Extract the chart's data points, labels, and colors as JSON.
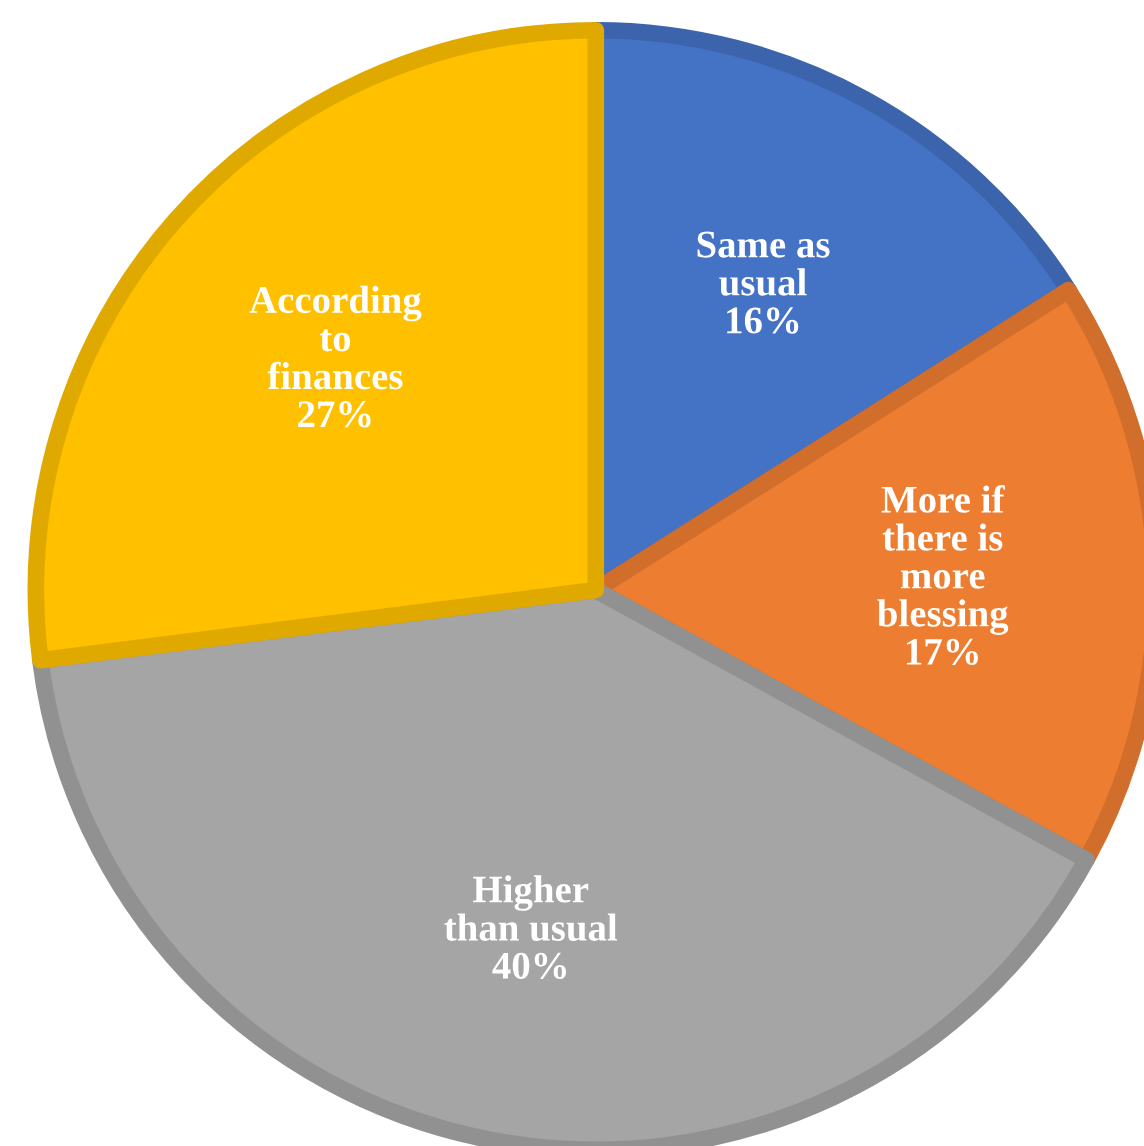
{
  "chart_data": {
    "type": "pie",
    "categories": [
      "Same as\nusual",
      "More if\nthere is\nmore\nblessing",
      "Higher\nthan usual",
      "According\nto\nfinances"
    ],
    "values": [
      16,
      17,
      40,
      27
    ],
    "value_labels": [
      "16%",
      "17%",
      "40%",
      "27%"
    ],
    "colors": [
      "#4472c4",
      "#ed7d31",
      "#a5a5a5",
      "#ffc000"
    ],
    "legend": false
  }
}
